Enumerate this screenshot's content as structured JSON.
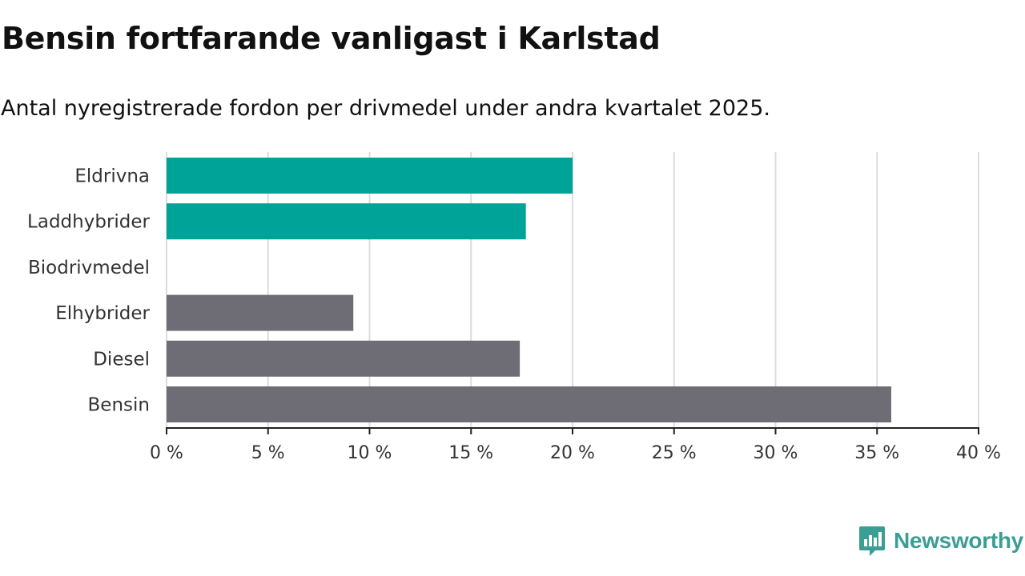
{
  "title": "Bensin fortfarande vanligast i Karlstad",
  "subtitle": "Antal nyregistrerade fordon per drivmedel under andra kvartalet 2025.",
  "brand": {
    "name": "Newsworthy",
    "icon": "newsworthy-logo-icon",
    "color": "#3a9e95"
  },
  "chart_data": {
    "type": "bar",
    "orientation": "horizontal",
    "categories": [
      "Eldrivna",
      "Laddhybrider",
      "Biodrivmedel",
      "Elhybrider",
      "Diesel",
      "Bensin"
    ],
    "values": [
      20.0,
      17.7,
      0,
      9.2,
      17.4,
      35.7
    ],
    "colors": [
      "#00a398",
      "#00a398",
      "#00a398",
      "#6e6d75",
      "#6e6d75",
      "#6e6d75"
    ],
    "xlim": [
      0,
      40
    ],
    "xticks": [
      0,
      5,
      10,
      15,
      20,
      25,
      30,
      35,
      40
    ],
    "xtick_labels": [
      "0 %",
      "5 %",
      "10 %",
      "15 %",
      "20 %",
      "25 %",
      "30 %",
      "35 %",
      "40 %"
    ],
    "xlabel": "",
    "ylabel": "",
    "grid": "vertical",
    "legend": "none"
  }
}
